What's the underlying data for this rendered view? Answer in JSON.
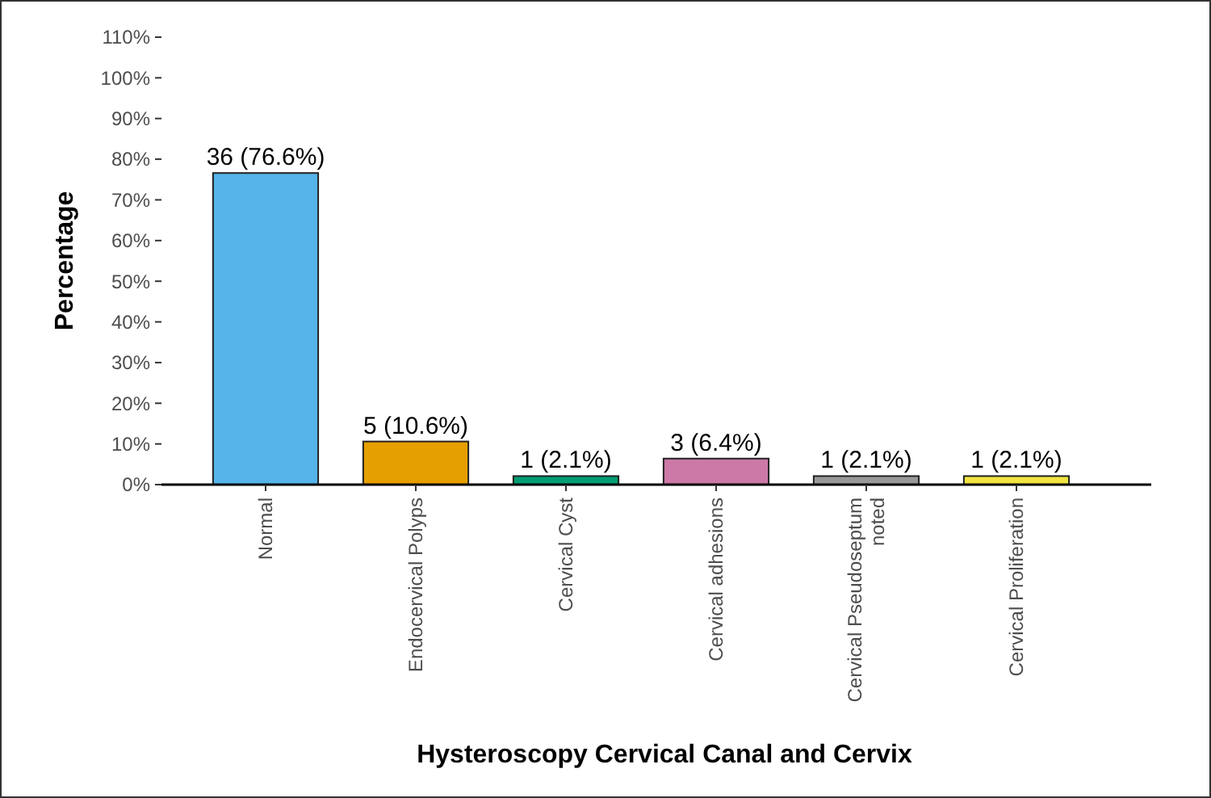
{
  "chart_data": {
    "type": "bar",
    "xlabel": "Hysteroscopy Cervical Canal and Cervix",
    "ylabel": "Percentage",
    "categories": [
      "Normal",
      "Endocervical Polyps",
      "Cervical Cyst",
      "Cervical adhesions",
      "Cervical Pseudoseptum noted",
      "Cervical Proliferation"
    ],
    "values": [
      76.6,
      10.6,
      2.1,
      6.4,
      2.1,
      2.1
    ],
    "colors": [
      "#56b4e9",
      "#e69f00",
      "#009e73",
      "#cc79a7",
      "#999999",
      "#f0e442"
    ],
    "value_labels": [
      "36 (76.6%)",
      "5 (10.6%)",
      "1 (2.1%)",
      "3 (6.4%)",
      "1 (2.1%)",
      "1 (2.1%)"
    ],
    "ylim": [
      0,
      110
    ],
    "yticks": [
      {
        "value": 0,
        "label": "0%"
      },
      {
        "value": 10,
        "label": "10%"
      },
      {
        "value": 20,
        "label": "20%"
      },
      {
        "value": 30,
        "label": "30%"
      },
      {
        "value": 40,
        "label": "40%"
      },
      {
        "value": 50,
        "label": "50%"
      },
      {
        "value": 60,
        "label": "60%"
      },
      {
        "value": 70,
        "label": "70%"
      },
      {
        "value": 80,
        "label": "80%"
      },
      {
        "value": 90,
        "label": "90%"
      },
      {
        "value": 100,
        "label": "100%"
      },
      {
        "value": 110,
        "label": "110%"
      }
    ],
    "grid": false
  }
}
